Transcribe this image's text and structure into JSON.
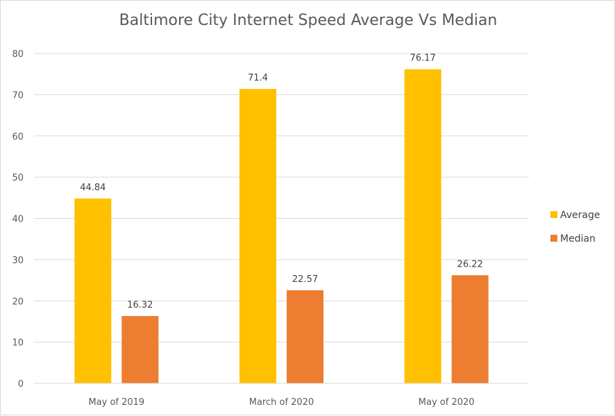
{
  "chart_data": {
    "type": "bar",
    "title": "Baltimore City Internet Speed Average Vs Median",
    "categories": [
      "May of 2019",
      "March of 2020",
      "May of 2020"
    ],
    "series": [
      {
        "name": "Average",
        "values": [
          44.84,
          71.4,
          76.17
        ],
        "color": "#FFC000"
      },
      {
        "name": "Median",
        "values": [
          16.32,
          22.57,
          26.22
        ],
        "color": "#ED7D31"
      }
    ],
    "ylim": [
      0,
      80
    ],
    "yticks": [
      0,
      10,
      20,
      30,
      40,
      50,
      60,
      70,
      80
    ],
    "grid": true,
    "legend_position": "right",
    "data_labels": true
  },
  "colors": {
    "gridline": "#d9d9d9",
    "axis_text": "#595959"
  }
}
